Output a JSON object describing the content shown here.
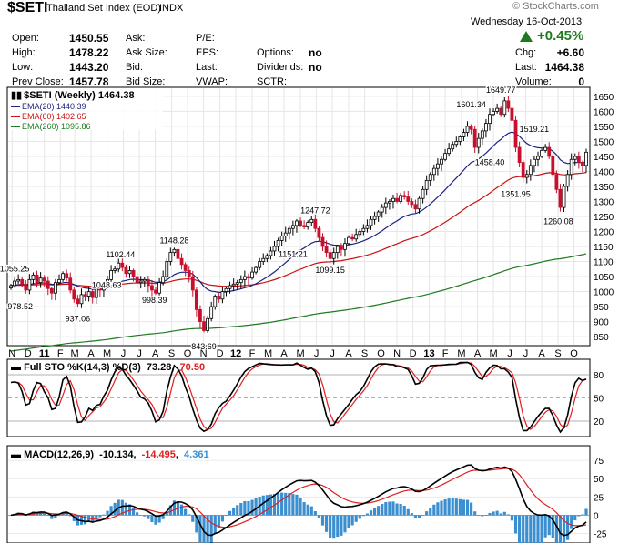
{
  "header": {
    "symbol": "$SETI",
    "name": "Thailand Set Index (EOD)",
    "exchange": "INDX",
    "copyright": "© StockCharts.com",
    "date": "Wednesday  16-Oct-2013",
    "change_pct": "+0.45%",
    "quote": [
      {
        "label": "Open:",
        "value": "1450.55"
      },
      {
        "label": "High:",
        "value": "1478.22"
      },
      {
        "label": "Low:",
        "value": "1443.20"
      },
      {
        "label": "Prev Close:",
        "value": "1457.78"
      }
    ],
    "quote2": [
      {
        "label": "Ask:",
        "value": ""
      },
      {
        "label": "Ask Size:",
        "value": ""
      },
      {
        "label": "Bid:",
        "value": ""
      },
      {
        "label": "Bid Size:",
        "value": ""
      }
    ],
    "quote3": [
      {
        "label": "P/E:",
        "value": ""
      },
      {
        "label": "EPS:",
        "value": ""
      },
      {
        "label": "Last:",
        "value": ""
      },
      {
        "label": "VWAP:",
        "value": ""
      }
    ],
    "quote4": [
      {
        "label": "",
        "value": ""
      },
      {
        "label": "Options:",
        "value": "no"
      },
      {
        "label": "Dividends:",
        "value": "no"
      },
      {
        "label": "SCTR:",
        "value": ""
      }
    ],
    "right": [
      {
        "label": "Chg:",
        "value": "+6.60"
      },
      {
        "label": "Last:",
        "value": "1464.38"
      },
      {
        "label": "Volume:",
        "value": "0"
      }
    ]
  },
  "chart_data": [
    {
      "type": "candlestick",
      "title": "$SETI (Weekly) 1464.38",
      "yticks": [
        850,
        900,
        950,
        1000,
        1050,
        1100,
        1150,
        1200,
        1250,
        1300,
        1350,
        1400,
        1450,
        1500,
        1550,
        1600,
        1650
      ],
      "ylim": [
        820,
        1680
      ],
      "x_labels": [
        {
          "label": "N",
          "x": 0.3,
          "bold": false
        },
        {
          "label": "D",
          "x": 4.6,
          "bold": false
        },
        {
          "label": "11",
          "x": 9,
          "bold": true
        },
        {
          "label": "F",
          "x": 13.3,
          "bold": false
        },
        {
          "label": "M",
          "x": 17.2,
          "bold": false
        },
        {
          "label": "A",
          "x": 21.6,
          "bold": false
        },
        {
          "label": "M",
          "x": 25.9,
          "bold": false
        },
        {
          "label": "J",
          "x": 30.3,
          "bold": false
        },
        {
          "label": "J",
          "x": 34.6,
          "bold": false
        },
        {
          "label": "A",
          "x": 38.9,
          "bold": false
        },
        {
          "label": "S",
          "x": 43.3,
          "bold": false
        },
        {
          "label": "O",
          "x": 47.6,
          "bold": false
        },
        {
          "label": "N",
          "x": 51.9,
          "bold": false
        },
        {
          "label": "D",
          "x": 56.3,
          "bold": false
        },
        {
          "label": "12",
          "x": 60.6,
          "bold": true
        },
        {
          "label": "F",
          "x": 65,
          "bold": false
        },
        {
          "label": "M",
          "x": 69.3,
          "bold": false
        },
        {
          "label": "A",
          "x": 73.6,
          "bold": false
        },
        {
          "label": "M",
          "x": 78,
          "bold": false
        },
        {
          "label": "J",
          "x": 82.3,
          "bold": false
        },
        {
          "label": "J",
          "x": 86.6,
          "bold": false
        },
        {
          "label": "A",
          "x": 91,
          "bold": false
        },
        {
          "label": "S",
          "x": 95.3,
          "bold": false
        },
        {
          "label": "O",
          "x": 99.7,
          "bold": false
        },
        {
          "label": "N",
          "x": 104,
          "bold": false
        },
        {
          "label": "D",
          "x": 108.3,
          "bold": false
        },
        {
          "label": "13",
          "x": 112.7,
          "bold": true
        },
        {
          "label": "F",
          "x": 117,
          "bold": false
        },
        {
          "label": "M",
          "x": 121.4,
          "bold": false
        },
        {
          "label": "A",
          "x": 125.7,
          "bold": false
        },
        {
          "label": "M",
          "x": 130,
          "bold": false
        },
        {
          "label": "J",
          "x": 134.4,
          "bold": false
        },
        {
          "label": "J",
          "x": 138.7,
          "bold": false
        },
        {
          "label": "A",
          "x": 143,
          "bold": false
        },
        {
          "label": "S",
          "x": 147.4,
          "bold": false
        },
        {
          "label": "O",
          "x": 151.7,
          "bold": false
        }
      ],
      "legend": [
        {
          "name": "EMA(20)",
          "value": "1440.39",
          "color": "#1a237e"
        },
        {
          "name": "EMA(60)",
          "value": "1402.65",
          "color": "#cc1111"
        },
        {
          "name": "EMA(260)",
          "value": "1095.86",
          "color": "#1f7a1f"
        }
      ],
      "close": [
        1020,
        1035,
        1040,
        1025,
        1005,
        1040,
        1055,
        1030,
        1045,
        1035,
        1010,
        995,
        1030,
        1040,
        1060,
        1045,
        1005,
        975,
        960,
        990,
        985,
        1000,
        980,
        1010,
        1005,
        1020,
        1040,
        1070,
        1075,
        1095,
        1080,
        1060,
        1070,
        1050,
        1030,
        1035,
        1040,
        1020,
        1005,
        995,
        1030,
        1050,
        1100,
        1130,
        1140,
        1110,
        1090,
        1070,
        1050,
        1005,
        940,
        900,
        870,
        910,
        950,
        985,
        975,
        1000,
        1010,
        1020,
        1025,
        1030,
        1040,
        1050,
        1045,
        1065,
        1080,
        1100,
        1110,
        1120,
        1135,
        1150,
        1170,
        1185,
        1195,
        1210,
        1220,
        1235,
        1220,
        1215,
        1230,
        1240,
        1210,
        1180,
        1150,
        1130,
        1110,
        1130,
        1150,
        1140,
        1160,
        1180,
        1175,
        1190,
        1200,
        1210,
        1220,
        1240,
        1250,
        1265,
        1280,
        1295,
        1300,
        1310,
        1300,
        1320,
        1315,
        1300,
        1290,
        1275,
        1310,
        1340,
        1370,
        1390,
        1410,
        1425,
        1440,
        1460,
        1475,
        1490,
        1500,
        1515,
        1530,
        1550,
        1540,
        1480,
        1510,
        1535,
        1560,
        1590,
        1600,
        1610,
        1590,
        1635,
        1610,
        1570,
        1480,
        1430,
        1380,
        1390,
        1420,
        1440,
        1450,
        1470,
        1480,
        1450,
        1390,
        1340,
        1280,
        1350,
        1390,
        1440,
        1450,
        1430,
        1420,
        1464
      ],
      "price_labels": [
        {
          "text": "1055.25",
          "x": 1,
          "v": 1055,
          "pos": "above"
        },
        {
          "text": "978.52",
          "x": 2.5,
          "v": 978,
          "pos": "below"
        },
        {
          "text": "937.06",
          "x": 18,
          "v": 937,
          "pos": "below"
        },
        {
          "text": "1102.44",
          "x": 29.5,
          "v": 1102,
          "pos": "above"
        },
        {
          "text": "1048.63",
          "x": 25.8,
          "v": 1048,
          "pos": "below"
        },
        {
          "text": "998.39",
          "x": 38.7,
          "v": 998,
          "pos": "below"
        },
        {
          "text": "1148.28",
          "x": 44,
          "v": 1148,
          "pos": "above"
        },
        {
          "text": "843.69",
          "x": 52,
          "v": 844,
          "pos": "below"
        },
        {
          "text": "1247.72",
          "x": 82,
          "v": 1248,
          "pos": "above"
        },
        {
          "text": "1151.21",
          "x": 76,
          "v": 1151,
          "pos": "below"
        },
        {
          "text": "1099.15",
          "x": 86,
          "v": 1099,
          "pos": "below"
        },
        {
          "text": "1601.34",
          "x": 124,
          "v": 1601,
          "pos": "above"
        },
        {
          "text": "1458.40",
          "x": 129,
          "v": 1458,
          "pos": "below"
        },
        {
          "text": "1649.77",
          "x": 132,
          "v": 1650,
          "pos": "above"
        },
        {
          "text": "1519.21",
          "x": 141,
          "v": 1519,
          "pos": "above"
        },
        {
          "text": "1351.95",
          "x": 136,
          "v": 1352,
          "pos": "below"
        },
        {
          "text": "1260.08",
          "x": 147.5,
          "v": 1260,
          "pos": "below"
        }
      ]
    },
    {
      "type": "line",
      "title": "Full STO %K(14,3) %D(3) 73.28, 70.50",
      "title_parts": {
        "name": "Full STO %K(14,3) %D(3)",
        "k": "73.28",
        "d": "70.50"
      },
      "yticks": [
        20,
        50,
        80
      ],
      "ylim": [
        0,
        100
      ]
    },
    {
      "type": "line",
      "title": "MACD(12,26,9) -10.134, -14.495, 4.361",
      "title_parts": {
        "name": "MACD(12,26,9)",
        "macd": "-10.134",
        "signal": "-14.495",
        "hist": "4.361"
      },
      "yticks": [
        -25,
        0,
        25,
        50,
        75
      ],
      "ylim": [
        -38,
        95
      ]
    }
  ],
  "colors": {
    "up_candle": "#000000",
    "down_candle": "#c8102e",
    "ema20": "#1a237e",
    "ema60": "#cc1111",
    "ema260": "#1f7a1f",
    "sto_k": "#000000",
    "sto_d": "#e02020",
    "macd": "#000000",
    "signal": "#e02020",
    "hist": "#3b8fd0",
    "up_arrow": "#1f7a1f"
  }
}
